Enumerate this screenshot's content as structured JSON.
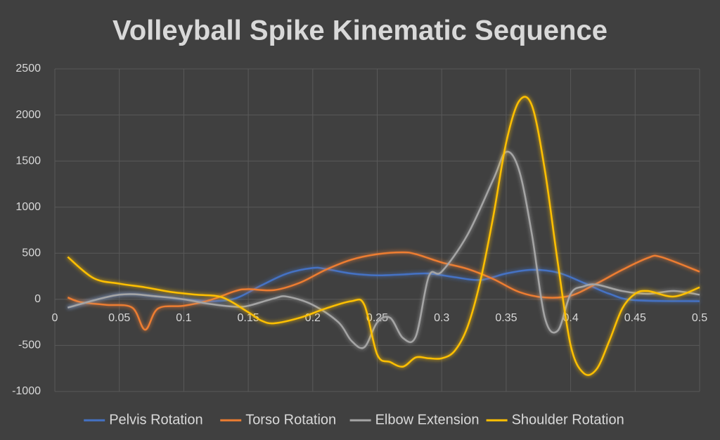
{
  "chart_data": {
    "type": "line",
    "title": "Volleyball Spike Kinematic Sequence",
    "xlim": [
      0,
      0.5
    ],
    "xticks": [
      0,
      0.05,
      0.1,
      0.15,
      0.2,
      0.25,
      0.3,
      0.35,
      0.4,
      0.45,
      0.5
    ],
    "ylim": [
      -1000,
      2500
    ],
    "yticks": [
      -1000,
      -500,
      0,
      500,
      1000,
      1500,
      2000,
      2500
    ],
    "grid": true,
    "legend": "bottom",
    "series": [
      {
        "name": "Pelvis Rotation",
        "color": "#4472c4",
        "x": [
          0.01,
          0.05,
          0.08,
          0.1,
          0.12,
          0.14,
          0.16,
          0.18,
          0.2,
          0.21,
          0.23,
          0.25,
          0.27,
          0.29,
          0.31,
          0.33,
          0.35,
          0.37,
          0.39,
          0.41,
          0.43,
          0.45,
          0.5
        ],
        "values": [
          -90,
          50,
          30,
          0,
          -20,
          10,
          150,
          280,
          340,
          330,
          280,
          260,
          270,
          280,
          240,
          210,
          280,
          320,
          290,
          180,
          60,
          -10,
          -20
        ]
      },
      {
        "name": "Torso Rotation",
        "color": "#ed7d31",
        "x": [
          0.01,
          0.02,
          0.04,
          0.06,
          0.07,
          0.08,
          0.1,
          0.12,
          0.14,
          0.15,
          0.17,
          0.19,
          0.21,
          0.23,
          0.25,
          0.27,
          0.28,
          0.3,
          0.32,
          0.34,
          0.36,
          0.38,
          0.4,
          0.42,
          0.44,
          0.46,
          0.47,
          0.5
        ],
        "values": [
          20,
          -30,
          -60,
          -90,
          -330,
          -100,
          -70,
          -10,
          90,
          110,
          100,
          180,
          320,
          430,
          490,
          510,
          490,
          400,
          330,
          220,
          80,
          20,
          40,
          170,
          320,
          450,
          460,
          300
        ]
      },
      {
        "name": "Elbow Extension",
        "color": "#a5a5a5",
        "x": [
          0.01,
          0.05,
          0.08,
          0.1,
          0.12,
          0.14,
          0.15,
          0.17,
          0.18,
          0.2,
          0.22,
          0.23,
          0.24,
          0.25,
          0.26,
          0.27,
          0.28,
          0.29,
          0.3,
          0.32,
          0.34,
          0.35,
          0.36,
          0.37,
          0.38,
          0.39,
          0.4,
          0.41,
          0.42,
          0.44,
          0.46,
          0.48,
          0.5
        ],
        "values": [
          -90,
          50,
          30,
          0,
          -50,
          -80,
          -70,
          10,
          30,
          -60,
          -250,
          -450,
          -520,
          -250,
          -200,
          -420,
          -400,
          250,
          300,
          700,
          1300,
          1600,
          1400,
          700,
          -200,
          -340,
          60,
          140,
          160,
          90,
          60,
          90,
          50
        ]
      },
      {
        "name": "Shoulder Rotation",
        "color": "#ffc000",
        "x": [
          0.01,
          0.03,
          0.05,
          0.07,
          0.09,
          0.11,
          0.13,
          0.15,
          0.16,
          0.17,
          0.19,
          0.21,
          0.23,
          0.24,
          0.25,
          0.26,
          0.27,
          0.28,
          0.29,
          0.3,
          0.31,
          0.32,
          0.33,
          0.34,
          0.35,
          0.36,
          0.37,
          0.38,
          0.39,
          0.4,
          0.41,
          0.42,
          0.43,
          0.44,
          0.45,
          0.46,
          0.48,
          0.5
        ],
        "values": [
          460,
          230,
          170,
          130,
          80,
          50,
          20,
          -140,
          -230,
          -260,
          -200,
          -100,
          -20,
          -60,
          -600,
          -680,
          -730,
          -630,
          -640,
          -640,
          -560,
          -300,
          200,
          900,
          1700,
          2150,
          2100,
          1400,
          400,
          -500,
          -800,
          -760,
          -450,
          -100,
          60,
          90,
          30,
          130
        ]
      }
    ]
  }
}
